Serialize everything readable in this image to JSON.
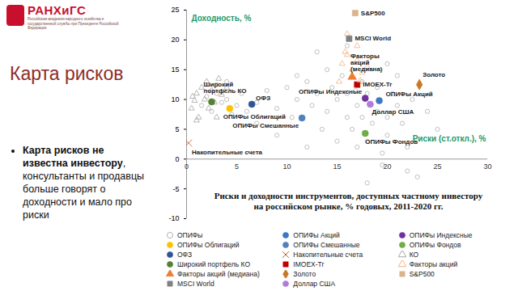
{
  "slide": {
    "logo": "РАНХиГС",
    "logo_subtitle": "Российская академия народного хозяйства и государственной службы при Президенте Российской Федерации",
    "heading": "Карта рисков",
    "bullet_bold": "Карта рисков не известна инвестору",
    "bullet_text": ", консультанты и продавцы больше говорят о доходности и мало про риски"
  },
  "chart_data": {
    "type": "scatter",
    "title": "Риски и доходности инструментов, доступных частному инвестору на российском рынке, % годовых, 2011-2020 гг.",
    "x_label": "Риски (ст.откл.), %",
    "y_label": "Доходность, %",
    "xlim": [
      0,
      30
    ],
    "xticks": [
      0,
      5,
      10,
      15,
      20,
      25,
      30
    ],
    "ylim": [
      -10,
      25
    ],
    "yticks": [
      -10,
      -5,
      0,
      5,
      10,
      15,
      20,
      25
    ],
    "grid": false,
    "legend": "bottom",
    "series": [
      {
        "name": "ОПИФы",
        "color": "#b0b0b0",
        "marker": "open-circle",
        "x": [
          1.5,
          2,
          2.5,
          3,
          3.5,
          4,
          4.5,
          5,
          5.5,
          6,
          7,
          8,
          9,
          10,
          10.5,
          11,
          12,
          12.5,
          13,
          13.5,
          14,
          14.5,
          15,
          15,
          15.5,
          16,
          16,
          16.5,
          17,
          17,
          17.5,
          17.5,
          18,
          18,
          18.5,
          19,
          19,
          19.5,
          19.5,
          20,
          20,
          20.5,
          21,
          21.5,
          22,
          22.5,
          23,
          24,
          25,
          13,
          16,
          14,
          11,
          3,
          4,
          9,
          7,
          21,
          22,
          20,
          18,
          12
        ],
        "y": [
          9,
          10.5,
          8,
          11,
          9.5,
          10,
          7.5,
          9,
          11,
          8,
          9.5,
          11.5,
          8.5,
          12,
          7,
          10,
          13,
          9,
          11,
          5,
          8,
          12,
          10,
          3,
          14,
          7,
          11,
          5,
          9,
          2,
          13,
          7,
          11,
          3,
          6,
          12,
          8,
          1,
          -1,
          7,
          4,
          11,
          9,
          6,
          2,
          10,
          -3,
          8,
          5,
          18,
          19,
          15,
          14,
          12.5,
          13,
          4,
          6,
          14,
          -2,
          16,
          -4,
          2
        ]
      },
      {
        "name": "ОПИФы Акций",
        "color": "#3c78c3",
        "marker": "circle",
        "x": [
          19.2
        ],
        "y": [
          9.8
        ]
      },
      {
        "name": "ОПИФы Индексные",
        "color": "#7030a0",
        "marker": "circle",
        "x": [
          17.8
        ],
        "y": [
          10.2
        ]
      },
      {
        "name": "ОПИФы Облигаций",
        "color": "#ffc000",
        "marker": "circle",
        "x": [
          4.3
        ],
        "y": [
          8.5
        ]
      },
      {
        "name": "ОПИФы Смешанные",
        "color": "#4f81bd",
        "marker": "circle",
        "x": [
          11.5
        ],
        "y": [
          6.9
        ]
      },
      {
        "name": "ОПИФы Фондов",
        "color": "#70ad47",
        "marker": "circle",
        "x": [
          17.8
        ],
        "y": [
          4.3
        ]
      },
      {
        "name": "ОФЗ",
        "color": "#2f5597",
        "marker": "circle",
        "x": [
          6.5
        ],
        "y": [
          9.2
        ]
      },
      {
        "name": "Накопительные счета",
        "color": "#c55a11",
        "marker": "x",
        "x": [
          0.2
        ],
        "y": [
          2.7
        ]
      },
      {
        "name": "КО",
        "color": "#a5a5a5",
        "marker": "open-triangle",
        "x": [
          0.5,
          0.8,
          1,
          1.2,
          1.5,
          1.8,
          2,
          2.2,
          2.5,
          3,
          3.2,
          3.5,
          4,
          1,
          2.8,
          0.6
        ],
        "y": [
          8.5,
          9.8,
          11,
          7,
          12,
          10,
          13,
          8.5,
          11.5,
          7,
          13.5,
          10.8,
          12,
          6.5,
          9.5,
          10.5
        ]
      },
      {
        "name": "Широкий портфель КО",
        "color": "#548235",
        "marker": "circle",
        "x": [
          2.5
        ],
        "y": [
          9.6
        ]
      },
      {
        "name": "IMOEX-Tr",
        "color": "#c00000",
        "marker": "square",
        "x": [
          17
        ],
        "y": [
          12.5
        ]
      },
      {
        "name": "Факторы акций",
        "color": "#f4b183",
        "marker": "open-triangle",
        "x": [
          15.5,
          16,
          16.5,
          17,
          17.5,
          16,
          15.8,
          17,
          18,
          17.3,
          15.2,
          16.8
        ],
        "y": [
          16,
          17.5,
          15,
          19,
          14.5,
          21,
          18,
          16.5,
          15.5,
          13.2,
          13,
          11.5
        ]
      },
      {
        "name": "Факторы акций (медиана)",
        "color": "#ed7d31",
        "marker": "triangle",
        "x": [
          16.5
        ],
        "y": [
          13.8
        ]
      },
      {
        "name": "Золото",
        "color": "#c9782a",
        "marker": "diamond",
        "x": [
          23.2
        ],
        "y": [
          12.5
        ]
      },
      {
        "name": "S&P500",
        "color": "#d9b38c",
        "marker": "square",
        "x": [
          16.8
        ],
        "y": [
          24.5
        ]
      },
      {
        "name": "MSCI World",
        "color": "#808080",
        "marker": "square",
        "x": [
          16.2
        ],
        "y": [
          20.2
        ]
      },
      {
        "name": "Доллар США",
        "color": "#b07cd8",
        "marker": "circle",
        "x": [
          18.3
        ],
        "y": [
          9.2
        ]
      }
    ]
  }
}
